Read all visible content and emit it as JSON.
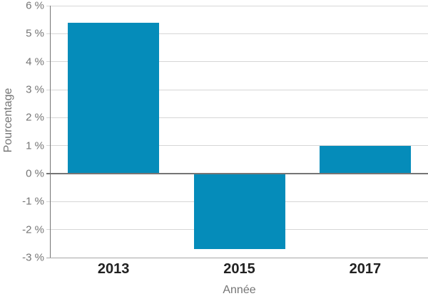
{
  "chart_data": {
    "type": "bar",
    "title": "",
    "xlabel": "Année",
    "ylabel": "Pourcentage",
    "categories": [
      "2013",
      "2015",
      "2017"
    ],
    "values": [
      5.4,
      -2.7,
      1.0
    ],
    "ylim": [
      -3,
      6
    ],
    "grid": true,
    "legend": false,
    "bar_color": "#058cba",
    "yticks": [
      {
        "value": 6,
        "label": "6 %"
      },
      {
        "value": 5,
        "label": "5 %"
      },
      {
        "value": 4,
        "label": "4 %"
      },
      {
        "value": 3,
        "label": "3 %"
      },
      {
        "value": 2,
        "label": "2 %"
      },
      {
        "value": 1,
        "label": "1 %"
      },
      {
        "value": 0,
        "label": "0 %"
      },
      {
        "value": -1,
        "label": "-1 %"
      },
      {
        "value": -2,
        "label": "-2 %"
      },
      {
        "value": -3,
        "label": "-3 %"
      }
    ],
    "colors": {
      "grid": "#d6d6d6",
      "axis": "#757575",
      "zero_line": "#757575",
      "baseline": "#a6a6a6",
      "tick_label": "#757575",
      "category_label": "#212121",
      "axis_title": "#757575",
      "background": "#ffffff"
    }
  }
}
